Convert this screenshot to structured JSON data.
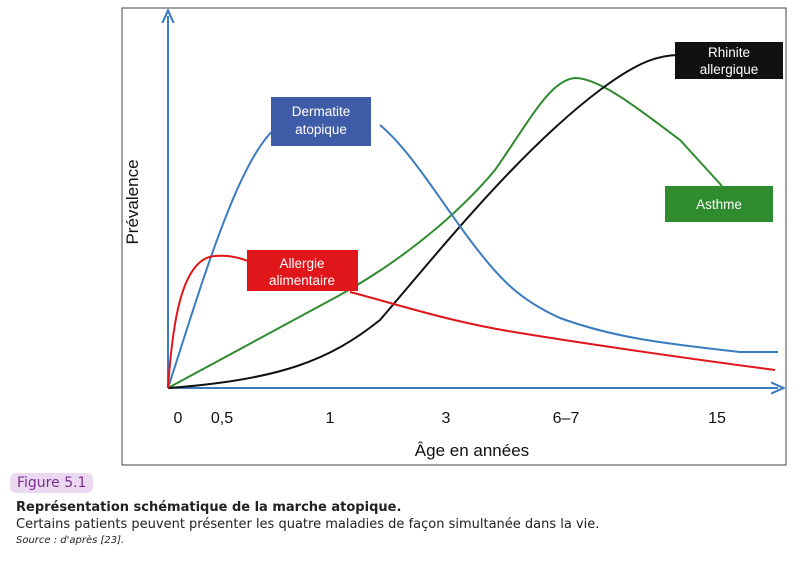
{
  "figure": {
    "y_axis_label": "Prévalence",
    "x_axis_label": "Âge en années",
    "x_tick_labels": [
      "0",
      "0,5",
      "1",
      "3",
      "6–7",
      "15"
    ],
    "curve_labels": {
      "dermatitis": [
        "Dermatite",
        "atopique"
      ],
      "food_allergy": [
        "Allergie",
        "alimentaire"
      ],
      "rhinitis": [
        "Rhinite",
        "allergique"
      ],
      "asthma": "Asthme"
    }
  },
  "caption": {
    "label": "Figure 5.1",
    "title": "Représentation schématique de la marche atopique.",
    "text": "Certains patients peuvent présenter les quatre maladies de façon simultanée dans la vie.",
    "source": "Source : d'après [23]."
  }
}
